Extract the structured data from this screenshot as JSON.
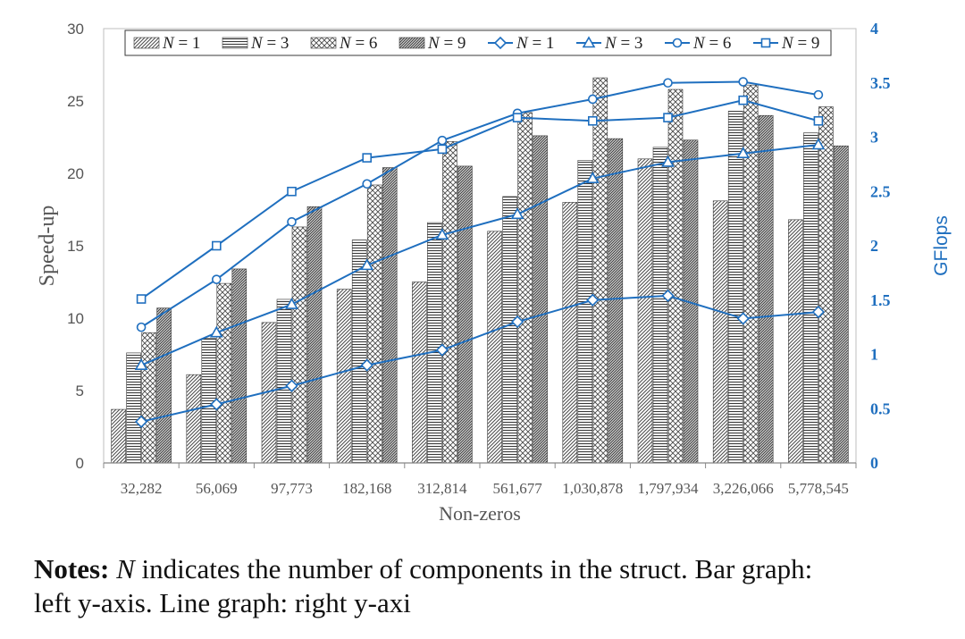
{
  "chart_data": {
    "type": "bar+line",
    "categories": [
      "32,282",
      "56,069",
      "97,773",
      "182,168",
      "312,814",
      "561,677",
      "1,030,878",
      "1,797,934",
      "3,226,066",
      "5,778,545"
    ],
    "xlabel": "Non-zeros",
    "ylabel_left": "Speed-up",
    "ylabel_right": "GFlops",
    "ylim_left": [
      0,
      30
    ],
    "ylim_right": [
      0,
      4
    ],
    "yticks_left": [
      "0",
      "5",
      "10",
      "15",
      "20",
      "25",
      "30"
    ],
    "yticks_right": [
      "0",
      "0.5",
      "1",
      "1.5",
      "2",
      "2.5",
      "3",
      "3.5",
      "4"
    ],
    "bar_series": [
      {
        "name": "N = 1",
        "legend_var": "N",
        "legend_rest": " = 1",
        "values": [
          3.7,
          6.1,
          9.7,
          12.0,
          12.5,
          16.0,
          18.0,
          21.0,
          18.1,
          16.8
        ]
      },
      {
        "name": "N = 3",
        "legend_var": "N",
        "legend_rest": " = 3",
        "values": [
          7.6,
          8.6,
          11.3,
          15.4,
          16.6,
          18.4,
          20.9,
          21.8,
          24.3,
          22.8
        ]
      },
      {
        "name": "N = 6",
        "legend_var": "N",
        "legend_rest": " = 6",
        "values": [
          9.0,
          12.4,
          16.3,
          19.2,
          22.2,
          24.2,
          26.6,
          25.8,
          26.1,
          24.6
        ]
      },
      {
        "name": "N = 9",
        "legend_var": "N",
        "legend_rest": " = 9",
        "values": [
          10.7,
          13.4,
          17.7,
          20.4,
          20.5,
          22.6,
          22.4,
          22.3,
          24.0,
          21.9
        ]
      }
    ],
    "line_series": [
      {
        "name": "N = 1",
        "legend_var": "N",
        "legend_rest": " = 1",
        "marker": "diamond",
        "values": [
          0.38,
          0.54,
          0.71,
          0.9,
          1.04,
          1.3,
          1.5,
          1.54,
          1.33,
          1.39
        ]
      },
      {
        "name": "N = 3",
        "legend_var": "N",
        "legend_rest": " = 3",
        "marker": "triangle",
        "values": [
          0.9,
          1.2,
          1.46,
          1.82,
          2.1,
          2.29,
          2.62,
          2.77,
          2.85,
          2.93
        ]
      },
      {
        "name": "N = 6",
        "legend_var": "N",
        "legend_rest": " = 6",
        "marker": "circle",
        "values": [
          1.25,
          1.69,
          2.22,
          2.57,
          2.97,
          3.22,
          3.35,
          3.5,
          3.51,
          3.39
        ]
      },
      {
        "name": "N = 9",
        "legend_var": "N",
        "legend_rest": " = 9",
        "marker": "square",
        "values": [
          1.51,
          2.0,
          2.5,
          2.81,
          2.89,
          3.18,
          3.15,
          3.18,
          3.34,
          3.15
        ]
      }
    ],
    "legend_position": "top",
    "grid": false
  },
  "colors": {
    "bar_stroke": "#3a3a3a",
    "line": "#1f6fbf",
    "right_axis_text": "#1f6fbf",
    "axis": "#888888"
  },
  "notes": {
    "label": "Notes:",
    "var": "N",
    "text_1": " indicates the number of components in the struct. Bar graph:",
    "text_2": "left y-axis. Line graph: right y-axi"
  }
}
